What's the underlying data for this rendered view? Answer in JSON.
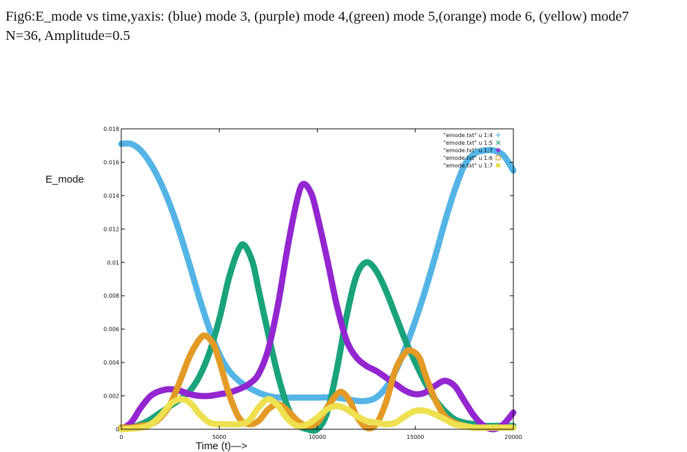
{
  "caption": {
    "line1": "Fig6:E_mode vs time,yaxis: (blue) mode 3, (purple) mode 4,(green) mode 5,(orange) mode 6, (yellow) mode7",
    "line2": "N=36, Amplitude=0.5"
  },
  "chart_data": {
    "type": "line",
    "title": "",
    "xlabel": "Time (t)—>",
    "ylabel": "E_mode",
    "xlim": [
      0,
      20000
    ],
    "ylim": [
      0,
      0.018
    ],
    "x_ticks": [
      "0",
      "5000",
      "10000",
      "15000",
      "20000"
    ],
    "x_tick_values": [
      0,
      5000,
      10000,
      15000,
      20000
    ],
    "y_ticks": [
      "0",
      "0.002",
      "0.004",
      "0.006",
      "0.008",
      "0.01",
      "0.012",
      "0.014",
      "0.016",
      "0.018"
    ],
    "y_tick_values": [
      0,
      0.002,
      0.004,
      0.006,
      0.008,
      0.01,
      0.012,
      0.014,
      0.016,
      0.018
    ],
    "grid": false,
    "legend_position": "top-right",
    "series": [
      {
        "name": "\"emode.txt\" u 1:4",
        "color": "#55b4e6",
        "marker": "plus",
        "points": [
          [
            0,
            0.0171
          ],
          [
            500,
            0.0171
          ],
          [
            1000,
            0.0167
          ],
          [
            1500,
            0.0159
          ],
          [
            2000,
            0.0148
          ],
          [
            2500,
            0.0134
          ],
          [
            3000,
            0.0117
          ],
          [
            3500,
            0.0098
          ],
          [
            4000,
            0.0078
          ],
          [
            4500,
            0.006
          ],
          [
            5000,
            0.0045
          ],
          [
            5500,
            0.0035
          ],
          [
            6000,
            0.0029
          ],
          [
            6500,
            0.0025
          ],
          [
            7000,
            0.0022
          ],
          [
            7500,
            0.002
          ],
          [
            8000,
            0.0019
          ],
          [
            9000,
            0.0019
          ],
          [
            10000,
            0.0019
          ],
          [
            11000,
            0.0019
          ],
          [
            12000,
            0.0017
          ],
          [
            12500,
            0.0017
          ],
          [
            13000,
            0.0019
          ],
          [
            13500,
            0.0025
          ],
          [
            14000,
            0.0035
          ],
          [
            14500,
            0.0049
          ],
          [
            15000,
            0.0065
          ],
          [
            15500,
            0.0083
          ],
          [
            16000,
            0.0103
          ],
          [
            16500,
            0.0124
          ],
          [
            17000,
            0.0143
          ],
          [
            17500,
            0.0158
          ],
          [
            18000,
            0.0165
          ],
          [
            18500,
            0.0167
          ],
          [
            19000,
            0.0167
          ],
          [
            19500,
            0.0164
          ],
          [
            20000,
            0.0155
          ]
        ]
      },
      {
        "name": "\"emode.txt\" u 1:5",
        "color": "#1aa37a",
        "marker": "cross",
        "points": [
          [
            0,
            0.0
          ],
          [
            500,
            0.0001
          ],
          [
            1000,
            0.0003
          ],
          [
            1500,
            0.0006
          ],
          [
            2000,
            0.001
          ],
          [
            2500,
            0.0014
          ],
          [
            3000,
            0.0018
          ],
          [
            3500,
            0.0023
          ],
          [
            4000,
            0.0032
          ],
          [
            4500,
            0.0046
          ],
          [
            5000,
            0.0066
          ],
          [
            5500,
            0.0091
          ],
          [
            6000,
            0.0108
          ],
          [
            6300,
            0.011
          ],
          [
            6700,
            0.01
          ],
          [
            7000,
            0.0084
          ],
          [
            7500,
            0.0057
          ],
          [
            8000,
            0.0032
          ],
          [
            8500,
            0.0013
          ],
          [
            9000,
            0.0003
          ],
          [
            9500,
            0.0
          ],
          [
            10000,
            0.0
          ],
          [
            10500,
            0.001
          ],
          [
            11000,
            0.0036
          ],
          [
            11500,
            0.0068
          ],
          [
            12000,
            0.0092
          ],
          [
            12500,
            0.01
          ],
          [
            13000,
            0.0095
          ],
          [
            13500,
            0.0083
          ],
          [
            14000,
            0.0068
          ],
          [
            14500,
            0.0053
          ],
          [
            15000,
            0.004
          ],
          [
            15500,
            0.0028
          ],
          [
            16000,
            0.0018
          ],
          [
            16500,
            0.0011
          ],
          [
            17000,
            0.0006
          ],
          [
            17500,
            0.0004
          ],
          [
            18000,
            0.0003
          ],
          [
            18500,
            0.0002
          ],
          [
            19000,
            0.0002
          ],
          [
            20000,
            0.0002
          ]
        ]
      },
      {
        "name": "\"emode.txt\" u 1:7",
        "color": "#9326d0",
        "marker": "asterisk",
        "points": [
          [
            0,
            0.0
          ],
          [
            500,
            0.0004
          ],
          [
            1000,
            0.0013
          ],
          [
            1500,
            0.002
          ],
          [
            2000,
            0.0023
          ],
          [
            2500,
            0.0024
          ],
          [
            3000,
            0.0023
          ],
          [
            3500,
            0.0021
          ],
          [
            4000,
            0.002
          ],
          [
            4500,
            0.002
          ],
          [
            5000,
            0.0021
          ],
          [
            5500,
            0.0022
          ],
          [
            6000,
            0.0024
          ],
          [
            6500,
            0.0027
          ],
          [
            7000,
            0.0033
          ],
          [
            7500,
            0.0048
          ],
          [
            8000,
            0.0075
          ],
          [
            8500,
            0.011
          ],
          [
            9000,
            0.0139
          ],
          [
            9300,
            0.0147
          ],
          [
            9700,
            0.0141
          ],
          [
            10000,
            0.0128
          ],
          [
            10500,
            0.0102
          ],
          [
            11000,
            0.0074
          ],
          [
            11500,
            0.0053
          ],
          [
            12000,
            0.0043
          ],
          [
            12500,
            0.0038
          ],
          [
            13000,
            0.0035
          ],
          [
            13500,
            0.0031
          ],
          [
            14000,
            0.0027
          ],
          [
            14500,
            0.0023
          ],
          [
            15000,
            0.0021
          ],
          [
            15500,
            0.0022
          ],
          [
            16000,
            0.0026
          ],
          [
            16500,
            0.0029
          ],
          [
            17000,
            0.0026
          ],
          [
            17500,
            0.0017
          ],
          [
            18000,
            0.0008
          ],
          [
            18500,
            0.0002
          ],
          [
            19000,
            0.0
          ],
          [
            19500,
            0.0003
          ],
          [
            20000,
            0.001
          ]
        ]
      },
      {
        "name": "\"emode.txt\" u 1:6",
        "color": "#e39a26",
        "marker": "square-open",
        "points": [
          [
            0,
            0.0001
          ],
          [
            500,
            0.0001
          ],
          [
            1000,
            0.0002
          ],
          [
            1500,
            0.0003
          ],
          [
            2000,
            0.0007
          ],
          [
            2500,
            0.0015
          ],
          [
            3000,
            0.0029
          ],
          [
            3500,
            0.0044
          ],
          [
            4000,
            0.0054
          ],
          [
            4300,
            0.0056
          ],
          [
            4700,
            0.0051
          ],
          [
            5000,
            0.0041
          ],
          [
            5500,
            0.0021
          ],
          [
            6000,
            0.0007
          ],
          [
            6500,
            0.0003
          ],
          [
            7000,
            0.0005
          ],
          [
            7500,
            0.0012
          ],
          [
            8000,
            0.0015
          ],
          [
            8500,
            0.0011
          ],
          [
            9000,
            0.0005
          ],
          [
            9500,
            0.0002
          ],
          [
            10000,
            0.0004
          ],
          [
            10500,
            0.0013
          ],
          [
            11000,
            0.0021
          ],
          [
            11300,
            0.0022
          ],
          [
            11700,
            0.0016
          ],
          [
            12000,
            0.0008
          ],
          [
            12500,
            0.0001
          ],
          [
            13000,
            0.0003
          ],
          [
            13500,
            0.0016
          ],
          [
            14000,
            0.0036
          ],
          [
            14500,
            0.0046
          ],
          [
            14800,
            0.0047
          ],
          [
            15200,
            0.0043
          ],
          [
            15500,
            0.0033
          ],
          [
            16000,
            0.0018
          ],
          [
            16500,
            0.0008
          ],
          [
            17000,
            0.0004
          ],
          [
            17500,
            0.0002
          ],
          [
            18000,
            0.0001
          ],
          [
            19000,
            0.0001
          ],
          [
            20000,
            0.0001
          ]
        ]
      },
      {
        "name": "\"emode.txt\" u 1:7",
        "color": "#eee050",
        "marker": "square-filled",
        "points": [
          [
            0,
            0.0
          ],
          [
            1000,
            0.0001
          ],
          [
            1500,
            0.0003
          ],
          [
            2000,
            0.0008
          ],
          [
            2500,
            0.0015
          ],
          [
            3000,
            0.0018
          ],
          [
            3500,
            0.0016
          ],
          [
            4000,
            0.0009
          ],
          [
            4500,
            0.0004
          ],
          [
            5000,
            0.0003
          ],
          [
            5500,
            0.0003
          ],
          [
            6000,
            0.0003
          ],
          [
            6500,
            0.0005
          ],
          [
            7000,
            0.0013
          ],
          [
            7500,
            0.0018
          ],
          [
            8000,
            0.0014
          ],
          [
            8500,
            0.0006
          ],
          [
            9000,
            0.0002
          ],
          [
            9500,
            0.0003
          ],
          [
            10000,
            0.0007
          ],
          [
            10500,
            0.0012
          ],
          [
            11000,
            0.0014
          ],
          [
            11500,
            0.0012
          ],
          [
            12000,
            0.0008
          ],
          [
            12500,
            0.0005
          ],
          [
            13000,
            0.0004
          ],
          [
            13500,
            0.0003
          ],
          [
            14000,
            0.0004
          ],
          [
            14500,
            0.0008
          ],
          [
            15000,
            0.0011
          ],
          [
            15500,
            0.0011
          ],
          [
            16000,
            0.0009
          ],
          [
            16500,
            0.0006
          ],
          [
            17000,
            0.0003
          ],
          [
            17500,
            0.0002
          ],
          [
            18000,
            0.0001
          ],
          [
            18500,
            0.0001
          ],
          [
            20000,
            0.0001
          ]
        ]
      }
    ]
  }
}
